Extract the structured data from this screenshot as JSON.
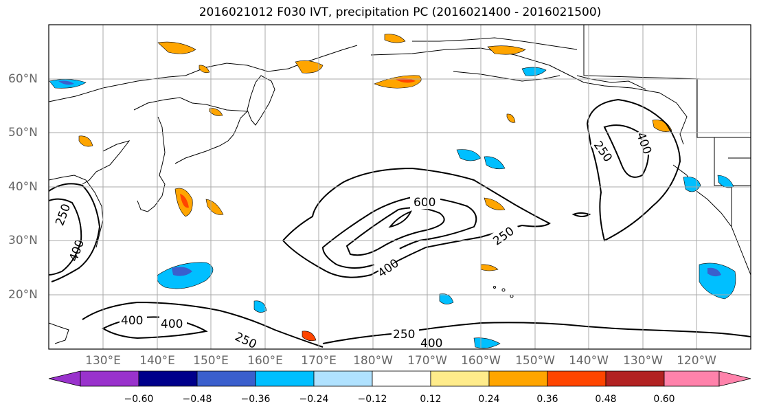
{
  "title": "2016021012 F030 IVT, precipitation PC (2016021400 - 2016021500)",
  "lat_labels": [
    "60°N",
    "50°N",
    "40°N",
    "30°N",
    "20°N"
  ],
  "lon_labels": [
    "130°E",
    "140°E",
    "150°E",
    "160°E",
    "170°E",
    "180°W",
    "170°W",
    "160°W",
    "150°W",
    "140°W",
    "130°W",
    "120°W"
  ],
  "contour_labels": [
    "600",
    "400",
    "250",
    "400",
    "250",
    "400",
    "250",
    "400",
    "400",
    "250",
    "250",
    "400"
  ],
  "colorbar": {
    "tick_labels": [
      "−0.60",
      "−0.48",
      "−0.36",
      "−0.24",
      "−0.12",
      "0.12",
      "0.24",
      "0.36",
      "0.48",
      "0.60"
    ],
    "colors": [
      "#9932cc",
      "#00008b",
      "#3a5fcd",
      "#00bfff",
      "#b0e2ff",
      "#ffffff",
      "#ffec8b",
      "#ffa500",
      "#ff4500",
      "#b22222",
      "#ff82ab"
    ]
  }
}
